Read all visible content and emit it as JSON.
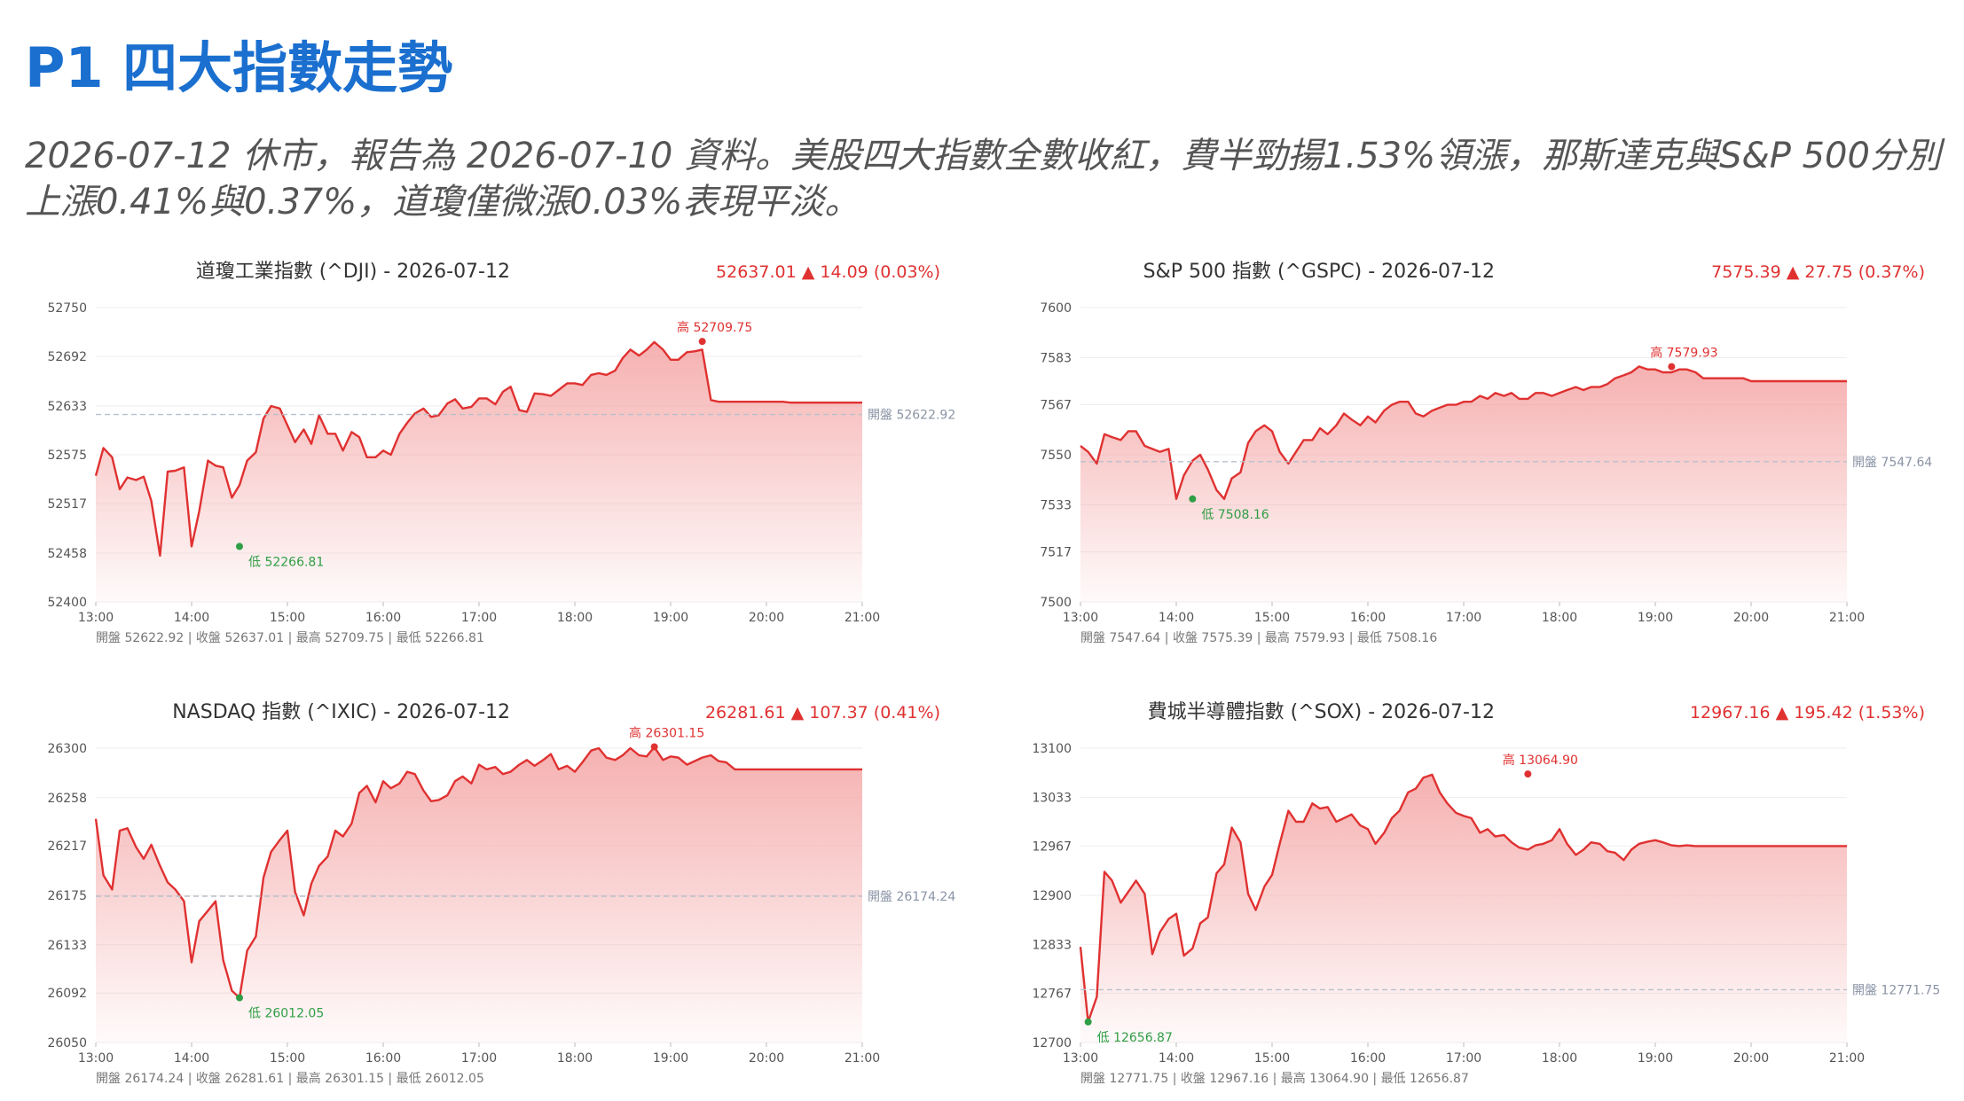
{
  "page": {
    "title": "P1 四大指數走勢",
    "summary": "2026-07-12 休市，報告為 2026-07-10 資料。美股四大指數全數收紅，費半勁揚1.53%領漲，那斯達克與S&P 500分別上漲0.41%與0.37%，道瓊僅微漲0.03%表現平淡。"
  },
  "colors": {
    "title": "#1a6fcf",
    "line": "#e03131",
    "fill": "#f4a3a3",
    "low": "#2f9e44",
    "open_line": "#b8c0cc"
  },
  "chart_data": [
    {
      "type": "line",
      "title": "道瓊工業指數 (^DJI) - 2026-07-12",
      "change_text": "52637.01 ▲ 14.09 (0.03%)",
      "x_ticks": [
        "13:00",
        "14:00",
        "15:00",
        "16:00",
        "17:00",
        "18:00",
        "19:00",
        "20:00",
        "21:00"
      ],
      "y_ticks": [
        "52750",
        "52692",
        "52633",
        "52575",
        "52517",
        "52458",
        "52400"
      ],
      "ylim": [
        52400,
        52750
      ],
      "open_value": 52622.92,
      "open_label": "開盤 52622.92",
      "high": {
        "label": "高 52709.75",
        "x": 19.33,
        "y": 52709.75
      },
      "low": {
        "label": "低 52266.81",
        "x": 14.5,
        "y": 52466
      },
      "footer": "開盤 52622.92 | 收盤 52637.01 | 最高 52709.75 | 最低 52266.81",
      "series": [
        {
          "x": [
            13.0,
            13.08,
            13.17,
            13.25,
            13.33,
            13.42,
            13.5,
            13.58,
            13.67,
            13.75,
            13.83,
            13.92,
            14.0,
            14.08,
            14.17,
            14.25,
            14.33,
            14.42,
            14.5,
            14.58,
            14.67,
            14.75,
            14.83,
            14.92,
            15.0,
            15.08,
            15.17,
            15.25,
            15.33,
            15.42,
            15.5,
            15.58,
            15.67,
            15.75,
            15.83,
            15.92,
            16.0,
            16.08,
            16.17,
            16.25,
            16.33,
            16.42,
            16.5,
            16.58,
            16.67,
            16.75,
            16.83,
            16.92,
            17.0,
            17.08,
            17.17,
            17.25,
            17.33,
            17.42,
            17.5,
            17.58,
            17.67,
            17.75,
            17.83,
            17.92,
            18.0,
            18.08,
            18.17,
            18.25,
            18.33,
            18.42,
            18.5,
            18.58,
            18.67,
            18.75,
            18.83,
            18.92,
            19.0,
            19.08,
            19.17,
            19.25,
            19.33,
            19.42,
            19.5,
            19.58,
            19.67,
            19.75,
            19.83,
            19.92,
            20.0,
            20.08,
            20.17,
            20.25,
            20.33,
            20.42,
            20.5,
            20.58,
            20.67,
            20.75,
            20.83,
            20.92,
            21.0
          ],
          "y": [
            52550,
            52583,
            52572,
            52534,
            52548,
            52545,
            52549,
            52520,
            52455,
            52555,
            52556,
            52560,
            52466,
            52508,
            52568,
            52562,
            52560,
            52524,
            52539,
            52568,
            52578,
            52618,
            52633,
            52630,
            52610,
            52590,
            52605,
            52588,
            52622,
            52600,
            52600,
            52580,
            52602,
            52596,
            52572,
            52572,
            52580,
            52575,
            52600,
            52613,
            52624,
            52630,
            52620,
            52622,
            52636,
            52641,
            52630,
            52632,
            52642,
            52642,
            52635,
            52650,
            52656,
            52628,
            52626,
            52648,
            52647,
            52645,
            52652,
            52660,
            52660,
            52658,
            52670,
            52672,
            52670,
            52675,
            52690,
            52700,
            52693,
            52700,
            52709,
            52700,
            52688,
            52688,
            52697,
            52698,
            52700,
            52640,
            52638,
            52638,
            52638,
            52638,
            52638,
            52638,
            52638,
            52638,
            52638,
            52637,
            52637,
            52637,
            52637,
            52637,
            52637,
            52637,
            52637,
            52637,
            52637
          ]
        }
      ]
    },
    {
      "type": "line",
      "title": "S&P 500 指數 (^GSPC) - 2026-07-12",
      "change_text": "7575.39 ▲ 27.75 (0.37%)",
      "x_ticks": [
        "13:00",
        "14:00",
        "15:00",
        "16:00",
        "17:00",
        "18:00",
        "19:00",
        "20:00",
        "21:00"
      ],
      "y_ticks": [
        "7600",
        "7583",
        "7567",
        "7550",
        "7533",
        "7517",
        "7500"
      ],
      "ylim": [
        7500,
        7600
      ],
      "open_value": 7547.64,
      "open_label": "開盤 7547.64",
      "high": {
        "label": "高 7579.93",
        "x": 19.17,
        "y": 7579.93
      },
      "low": {
        "label": "低 7508.16",
        "x": 14.17,
        "y": 7535
      },
      "footer": "開盤 7547.64 | 收盤 7575.39 | 最高 7579.93 | 最低 7508.16",
      "series": [
        {
          "x": [
            13.0,
            13.08,
            13.17,
            13.25,
            13.33,
            13.42,
            13.5,
            13.58,
            13.67,
            13.75,
            13.83,
            13.92,
            14.0,
            14.08,
            14.17,
            14.25,
            14.33,
            14.42,
            14.5,
            14.58,
            14.67,
            14.75,
            14.83,
            14.92,
            15.0,
            15.08,
            15.17,
            15.25,
            15.33,
            15.42,
            15.5,
            15.58,
            15.67,
            15.75,
            15.83,
            15.92,
            16.0,
            16.08,
            16.17,
            16.25,
            16.33,
            16.42,
            16.5,
            16.58,
            16.67,
            16.75,
            16.83,
            16.92,
            17.0,
            17.08,
            17.17,
            17.25,
            17.33,
            17.42,
            17.5,
            17.58,
            17.67,
            17.75,
            17.83,
            17.92,
            18.0,
            18.08,
            18.17,
            18.25,
            18.33,
            18.42,
            18.5,
            18.58,
            18.67,
            18.75,
            18.83,
            18.92,
            19.0,
            19.08,
            19.17,
            19.25,
            19.33,
            19.42,
            19.5,
            19.58,
            19.67,
            19.75,
            19.83,
            19.92,
            20.0,
            20.08,
            20.17,
            20.25,
            20.33,
            20.42,
            20.5,
            20.58,
            20.67,
            20.75,
            20.83,
            20.92,
            21.0
          ],
          "y": [
            7553,
            7551,
            7547,
            7557,
            7556,
            7555,
            7558,
            7558,
            7553,
            7552,
            7551,
            7552,
            7535,
            7543,
            7548,
            7550,
            7545,
            7538,
            7535,
            7542,
            7544,
            7554,
            7558,
            7560,
            7558,
            7551,
            7547,
            7551,
            7555,
            7555,
            7559,
            7557,
            7560,
            7564,
            7562,
            7560,
            7563,
            7561,
            7565,
            7567,
            7568,
            7568,
            7564,
            7563,
            7565,
            7566,
            7567,
            7567,
            7568,
            7568,
            7570,
            7569,
            7571,
            7570,
            7571,
            7569,
            7569,
            7571,
            7571,
            7570,
            7571,
            7572,
            7573,
            7572,
            7573,
            7573,
            7574,
            7576,
            7577,
            7578,
            7580,
            7579,
            7579,
            7578,
            7578,
            7579,
            7579,
            7578,
            7576,
            7576,
            7576,
            7576,
            7576,
            7576,
            7575,
            7575,
            7575,
            7575,
            7575,
            7575,
            7575,
            7575,
            7575,
            7575,
            7575,
            7575,
            7575
          ]
        }
      ]
    },
    {
      "type": "line",
      "title": "NASDAQ 指數 (^IXIC) - 2026-07-12",
      "change_text": "26281.61 ▲ 107.37 (0.41%)",
      "x_ticks": [
        "13:00",
        "14:00",
        "15:00",
        "16:00",
        "17:00",
        "18:00",
        "19:00",
        "20:00",
        "21:00"
      ],
      "y_ticks": [
        "26300",
        "26258",
        "26217",
        "26175",
        "26133",
        "26092",
        "26050"
      ],
      "ylim": [
        26050,
        26300
      ],
      "open_value": 26174.24,
      "open_label": "開盤 26174.24",
      "high": {
        "label": "高 26301.15",
        "x": 18.83,
        "y": 26301.15
      },
      "low": {
        "label": "低 26012.05",
        "x": 14.5,
        "y": 26088
      },
      "footer": "開盤 26174.24 | 收盤 26281.61 | 最高 26301.15 | 最低 26012.05",
      "series": [
        {
          "x": [
            13.0,
            13.08,
            13.17,
            13.25,
            13.33,
            13.42,
            13.5,
            13.58,
            13.67,
            13.75,
            13.83,
            13.92,
            14.0,
            14.08,
            14.17,
            14.25,
            14.33,
            14.42,
            14.5,
            14.58,
            14.67,
            14.75,
            14.83,
            14.92,
            15.0,
            15.08,
            15.17,
            15.25,
            15.33,
            15.42,
            15.5,
            15.58,
            15.67,
            15.75,
            15.83,
            15.92,
            16.0,
            16.08,
            16.17,
            16.25,
            16.33,
            16.42,
            16.5,
            16.58,
            16.67,
            16.75,
            16.83,
            16.92,
            17.0,
            17.08,
            17.17,
            17.25,
            17.33,
            17.42,
            17.5,
            17.58,
            17.67,
            17.75,
            17.83,
            17.92,
            18.0,
            18.08,
            18.17,
            18.25,
            18.33,
            18.42,
            18.5,
            18.58,
            18.67,
            18.75,
            18.83,
            18.92,
            19.0,
            19.08,
            19.17,
            19.25,
            19.33,
            19.42,
            19.5,
            19.58,
            19.67,
            19.75,
            19.83,
            19.92,
            20.0,
            20.08,
            20.17,
            20.25,
            20.33,
            20.42,
            20.5,
            20.58,
            20.67,
            20.75,
            20.83,
            20.92,
            21.0
          ],
          "y": [
            26240,
            26192,
            26180,
            26230,
            26232,
            26216,
            26206,
            26218,
            26200,
            26186,
            26180,
            26170,
            26118,
            26153,
            26162,
            26170,
            26120,
            26094,
            26088,
            26128,
            26140,
            26190,
            26212,
            26222,
            26230,
            26178,
            26158,
            26185,
            26200,
            26208,
            26230,
            26225,
            26236,
            26262,
            26268,
            26254,
            26272,
            26266,
            26270,
            26280,
            26278,
            26264,
            26255,
            26256,
            26260,
            26272,
            26276,
            26270,
            26286,
            26282,
            26284,
            26278,
            26280,
            26286,
            26290,
            26285,
            26290,
            26295,
            26282,
            26285,
            26280,
            26288,
            26298,
            26300,
            26292,
            26290,
            26294,
            26300,
            26294,
            26293,
            26301,
            26290,
            26293,
            26292,
            26286,
            26289,
            26292,
            26294,
            26289,
            26288,
            26282,
            26282,
            26282,
            26282,
            26282,
            26282,
            26282,
            26282,
            26282,
            26282,
            26282,
            26282,
            26282,
            26282,
            26282,
            26282,
            26282
          ]
        }
      ]
    },
    {
      "type": "line",
      "title": "費城半導體指數 (^SOX) - 2026-07-12",
      "change_text": "12967.16 ▲ 195.42 (1.53%)",
      "x_ticks": [
        "13:00",
        "14:00",
        "15:00",
        "16:00",
        "17:00",
        "18:00",
        "19:00",
        "20:00",
        "21:00"
      ],
      "y_ticks": [
        "13100",
        "13033",
        "12967",
        "12900",
        "12833",
        "12767",
        "12700"
      ],
      "ylim": [
        12700,
        13100
      ],
      "open_value": 12771.75,
      "open_label": "開盤 12771.75",
      "high": {
        "label": "高 13064.90",
        "x": 17.67,
        "y": 13064.9
      },
      "low": {
        "label": "低 12656.87",
        "x": 13.08,
        "y": 12728
      },
      "footer": "開盤 12771.75 | 收盤 12967.16 | 最高 13064.90 | 最低 12656.87",
      "series": [
        {
          "x": [
            13.0,
            13.08,
            13.17,
            13.25,
            13.33,
            13.42,
            13.5,
            13.58,
            13.67,
            13.75,
            13.83,
            13.92,
            14.0,
            14.08,
            14.17,
            14.25,
            14.33,
            14.42,
            14.5,
            14.58,
            14.67,
            14.75,
            14.83,
            14.92,
            15.0,
            15.08,
            15.17,
            15.25,
            15.33,
            15.42,
            15.5,
            15.58,
            15.67,
            15.75,
            15.83,
            15.92,
            16.0,
            16.08,
            16.17,
            16.25,
            16.33,
            16.42,
            16.5,
            16.58,
            16.67,
            16.75,
            16.83,
            16.92,
            17.0,
            17.08,
            17.17,
            17.25,
            17.33,
            17.42,
            17.5,
            17.58,
            17.67,
            17.75,
            17.83,
            17.92,
            18.0,
            18.08,
            18.17,
            18.25,
            18.33,
            18.42,
            18.5,
            18.58,
            18.67,
            18.75,
            18.83,
            18.92,
            19.0,
            19.08,
            19.17,
            19.25,
            19.33,
            19.42,
            19.5,
            19.58,
            19.67,
            19.75,
            19.83,
            19.92,
            20.0,
            20.08,
            20.17,
            20.25,
            20.33,
            20.42,
            20.5,
            20.58,
            20.67,
            20.75,
            20.83,
            20.92,
            21.0
          ],
          "y": [
            12830,
            12728,
            12762,
            12932,
            12920,
            12890,
            12905,
            12920,
            12902,
            12820,
            12850,
            12868,
            12875,
            12818,
            12828,
            12862,
            12870,
            12930,
            12942,
            12992,
            12972,
            12902,
            12880,
            12912,
            12928,
            12970,
            13015,
            13000,
            13000,
            13025,
            13018,
            13020,
            13000,
            13005,
            13010,
            12995,
            12990,
            12970,
            12985,
            13005,
            13015,
            13040,
            13045,
            13060,
            13064,
            13040,
            13025,
            13012,
            13008,
            13005,
            12985,
            12990,
            12980,
            12982,
            12972,
            12965,
            12962,
            12968,
            12970,
            12975,
            12990,
            12970,
            12955,
            12962,
            12972,
            12970,
            12960,
            12958,
            12948,
            12962,
            12970,
            12973,
            12975,
            12972,
            12968,
            12967,
            12968,
            12967,
            12967,
            12967,
            12967,
            12967,
            12967,
            12967,
            12967,
            12967,
            12967,
            12967,
            12967,
            12967,
            12967,
            12967,
            12967,
            12967,
            12967,
            12967,
            12967
          ]
        }
      ]
    }
  ]
}
